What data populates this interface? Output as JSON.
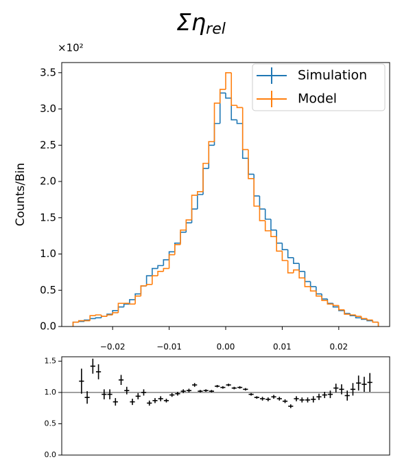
{
  "chart_data": [
    {
      "type": "histogram",
      "title": "Ση",
      "title_subscript": "rel",
      "y_label": "Counts/Bin",
      "y_offset_label": "×10²",
      "bins": [
        -0.027,
        -0.026,
        -0.025,
        -0.024,
        -0.023,
        -0.022,
        -0.021,
        -0.02,
        -0.019,
        -0.018,
        -0.017,
        -0.016,
        -0.015,
        -0.014,
        -0.013,
        -0.012,
        -0.011,
        -0.01,
        -0.009,
        -0.008,
        -0.007,
        -0.006,
        -0.005,
        -0.004,
        -0.003,
        -0.002,
        -0.001,
        0,
        0.001,
        0.002,
        0.003,
        0.004,
        0.005,
        0.006,
        0.007,
        0.008,
        0.009,
        0.01,
        0.011,
        0.012,
        0.013,
        0.014,
        0.015,
        0.016,
        0.017,
        0.018,
        0.019,
        0.02,
        0.021,
        0.022,
        0.023,
        0.024,
        0.025,
        0.026,
        0.027
      ],
      "series": [
        {
          "name": "Simulation",
          "color": "#1f77b4",
          "values": [
            0.06,
            0.07,
            0.09,
            0.11,
            0.12,
            0.14,
            0.17,
            0.22,
            0.27,
            0.31,
            0.37,
            0.45,
            0.56,
            0.7,
            0.8,
            0.84,
            0.92,
            1.03,
            1.15,
            1.3,
            1.43,
            1.62,
            1.82,
            2.18,
            2.5,
            2.8,
            3.22,
            3.15,
            2.85,
            2.8,
            2.32,
            2.1,
            1.8,
            1.62,
            1.48,
            1.33,
            1.15,
            1.06,
            0.95,
            0.87,
            0.76,
            0.62,
            0.55,
            0.45,
            0.38,
            0.32,
            0.27,
            0.22,
            0.18,
            0.15,
            0.12,
            0.1,
            0.08,
            0.06
          ]
        },
        {
          "name": "Model",
          "color": "#ff7f0e",
          "values": [
            0.06,
            0.08,
            0.08,
            0.15,
            0.16,
            0.14,
            0.16,
            0.19,
            0.32,
            0.32,
            0.31,
            0.42,
            0.56,
            0.58,
            0.7,
            0.76,
            0.8,
            0.99,
            1.13,
            1.33,
            1.47,
            1.81,
            1.86,
            2.25,
            2.55,
            3.08,
            3.27,
            3.5,
            3.05,
            3.02,
            2.44,
            2.04,
            1.66,
            1.46,
            1.32,
            1.24,
            1.04,
            0.91,
            0.74,
            0.78,
            0.67,
            0.55,
            0.49,
            0.42,
            0.36,
            0.31,
            0.29,
            0.23,
            0.17,
            0.16,
            0.14,
            0.11,
            0.09,
            0.06
          ]
        }
      ],
      "xlim": [
        -0.029,
        0.029
      ],
      "xticks": [
        {
          "value": -0.02,
          "label": "−0.02"
        },
        {
          "value": -0.01,
          "label": "−0.01"
        },
        {
          "value": 0,
          "label": "0.00"
        },
        {
          "value": 0.01,
          "label": "0.01"
        },
        {
          "value": 0.02,
          "label": "0.02"
        }
      ],
      "ylim": [
        0,
        3.64
      ],
      "yticks": [
        {
          "value": 0,
          "label": "0.0"
        },
        0.5,
        {
          "value": 1,
          "label": "1.0"
        },
        1.5,
        {
          "value": 2,
          "label": "2.0"
        },
        2.5,
        {
          "value": 3,
          "label": "3.0"
        },
        3.5
      ],
      "legend": "upper right"
    },
    {
      "type": "errorbar",
      "color": "#000000",
      "x": [
        -0.0265,
        -0.0255,
        -0.0245,
        -0.0235,
        -0.0225,
        -0.0215,
        -0.0205,
        -0.0195,
        -0.0185,
        -0.0175,
        -0.0165,
        -0.0155,
        -0.0145,
        -0.0135,
        -0.0125,
        -0.0115,
        -0.0105,
        -0.0095,
        -0.0085,
        -0.0075,
        -0.0065,
        -0.0055,
        -0.0045,
        -0.0035,
        -0.0025,
        -0.0015,
        -0.0005,
        0.0005,
        0.0015,
        0.0025,
        0.0035,
        0.0045,
        0.0055,
        0.0065,
        0.0075,
        0.0085,
        0.0095,
        0.0105,
        0.0115,
        0.0125,
        0.0135,
        0.0145,
        0.0155,
        0.0165,
        0.0175,
        0.0185,
        0.0195,
        0.0205,
        0.0215,
        0.0225,
        0.0235,
        0.0245,
        0.0255,
        0.0265
      ],
      "values": [
        null,
        1.18,
        0.92,
        1.42,
        1.33,
        0.97,
        0.97,
        0.85,
        1.2,
        1.03,
        0.85,
        0.94,
        1.0,
        0.83,
        0.87,
        0.9,
        0.87,
        0.96,
        0.98,
        1.02,
        1.03,
        1.12,
        1.02,
        1.03,
        1.02,
        1.1,
        1.08,
        1.12,
        1.07,
        1.08,
        1.05,
        0.97,
        0.92,
        0.9,
        0.89,
        0.93,
        0.9,
        0.86,
        0.78,
        0.9,
        0.88,
        0.88,
        0.89,
        0.93,
        0.96,
        0.97,
        1.07,
        1.05,
        0.95,
        1.05,
        1.15,
        1.13,
        1.16,
        null
      ],
      "errors": [
        null,
        0.2,
        0.1,
        0.12,
        0.12,
        0.08,
        0.08,
        0.06,
        0.08,
        0.06,
        0.05,
        0.05,
        0.05,
        0.04,
        0.04,
        0.04,
        0.03,
        0.03,
        0.03,
        0.03,
        0.03,
        0.03,
        0.02,
        0.02,
        0.02,
        0.02,
        0.02,
        0.02,
        0.02,
        0.02,
        0.02,
        0.02,
        0.02,
        0.03,
        0.03,
        0.03,
        0.03,
        0.03,
        0.03,
        0.04,
        0.04,
        0.04,
        0.05,
        0.05,
        0.05,
        0.06,
        0.07,
        0.08,
        0.08,
        0.1,
        0.12,
        0.12,
        0.15,
        null
      ],
      "xlim": [
        -0.029,
        0.029
      ],
      "ylim": [
        0,
        1.57
      ],
      "yticks": [
        {
          "value": 0,
          "label": "0.0"
        },
        0.5,
        {
          "value": 1,
          "label": "1.0"
        },
        1.5
      ],
      "hline": 1
    }
  ]
}
